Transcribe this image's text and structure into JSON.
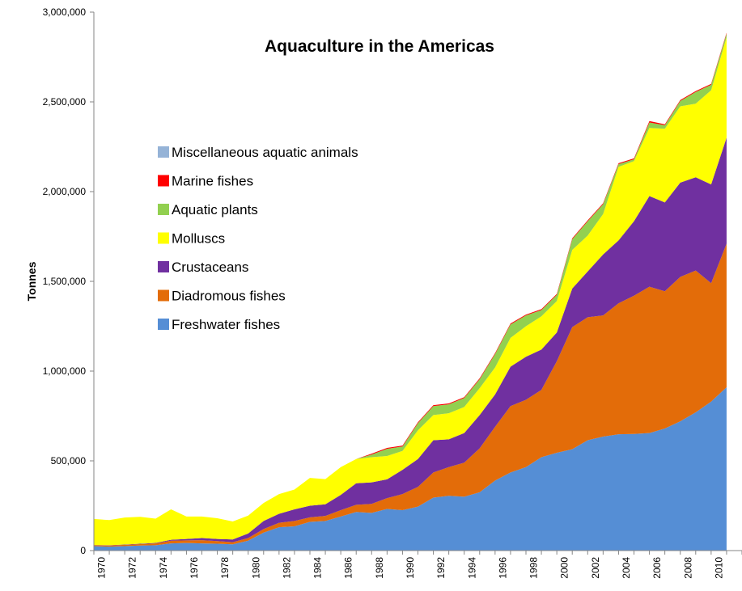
{
  "chart_data": {
    "type": "area",
    "stacked": true,
    "title": "Aquaculture in the Americas",
    "xlabel": "",
    "ylabel": "Tonnes",
    "ylim": [
      0,
      3000000
    ],
    "yticks": [
      0,
      500000,
      1000000,
      1500000,
      2000000,
      2500000,
      3000000
    ],
    "ytick_labels": [
      "0",
      "500,000",
      "1,000,000",
      "1,500,000",
      "2,000,000",
      "2,500,000",
      "3,000,000"
    ],
    "x": [
      1970,
      1971,
      1972,
      1973,
      1974,
      1975,
      1976,
      1977,
      1978,
      1979,
      1980,
      1981,
      1982,
      1983,
      1984,
      1985,
      1986,
      1987,
      1988,
      1989,
      1990,
      1991,
      1992,
      1993,
      1994,
      1995,
      1996,
      1997,
      1998,
      1999,
      2000,
      2001,
      2002,
      2003,
      2004,
      2005,
      2006,
      2007,
      2008,
      2009,
      2010,
      2011
    ],
    "xtick_labels": [
      "1970",
      "1972",
      "1974",
      "1976",
      "1978",
      "1980",
      "1982",
      "1984",
      "1986",
      "1988",
      "1990",
      "1992",
      "1994",
      "1996",
      "1998",
      "2000",
      "2002",
      "2004",
      "2006",
      "2008",
      "2010"
    ],
    "grid": false,
    "legend_position": "left-middle",
    "series": [
      {
        "name": "Freshwater fishes",
        "color": "#558ED5",
        "values": [
          25000,
          22000,
          25000,
          28000,
          30000,
          40000,
          42000,
          40000,
          38000,
          35000,
          55000,
          100000,
          130000,
          135000,
          160000,
          165000,
          190000,
          215000,
          210000,
          232000,
          225000,
          245000,
          295000,
          305000,
          300000,
          325000,
          390000,
          435000,
          465000,
          520000,
          545000,
          565000,
          615000,
          635000,
          648000,
          650000,
          655000,
          680000,
          720000,
          770000,
          830000,
          910000
        ]
      },
      {
        "name": "Diadromous fishes",
        "color": "#E36C09",
        "values": [
          5000,
          6000,
          7000,
          8000,
          10000,
          15000,
          15000,
          18000,
          15000,
          12000,
          15000,
          20000,
          25000,
          30000,
          25000,
          28000,
          35000,
          40000,
          50000,
          60000,
          90000,
          110000,
          140000,
          160000,
          190000,
          245000,
          300000,
          370000,
          375000,
          375000,
          510000,
          680000,
          685000,
          675000,
          730000,
          770000,
          815000,
          765000,
          805000,
          790000,
          660000,
          800000
        ]
      },
      {
        "name": "Crustaceans",
        "color": "#7030A0",
        "values": [
          1000,
          2000,
          2000,
          2000,
          3000,
          5000,
          8000,
          12000,
          12000,
          15000,
          25000,
          45000,
          50000,
          65000,
          65000,
          65000,
          85000,
          120000,
          120000,
          105000,
          135000,
          155000,
          180000,
          155000,
          165000,
          185000,
          180000,
          220000,
          240000,
          225000,
          160000,
          215000,
          255000,
          340000,
          350000,
          415000,
          505000,
          495000,
          525000,
          520000,
          550000,
          590000
        ]
      },
      {
        "name": "Molluscs",
        "color": "#FFFF00",
        "values": [
          145000,
          140000,
          150000,
          150000,
          135000,
          170000,
          125000,
          120000,
          115000,
          100000,
          100000,
          100000,
          110000,
          110000,
          155000,
          140000,
          155000,
          135000,
          140000,
          130000,
          105000,
          160000,
          140000,
          145000,
          145000,
          150000,
          150000,
          160000,
          170000,
          185000,
          175000,
          215000,
          200000,
          225000,
          410000,
          335000,
          380000,
          410000,
          425000,
          410000,
          525000,
          560000
        ]
      },
      {
        "name": "Aquatic plants",
        "color": "#92D050",
        "values": [
          0,
          0,
          0,
          0,
          0,
          0,
          0,
          0,
          0,
          0,
          0,
          0,
          0,
          0,
          0,
          0,
          0,
          0,
          15000,
          40000,
          25000,
          40000,
          50000,
          50000,
          50000,
          50000,
          75000,
          75000,
          60000,
          35000,
          35000,
          60000,
          80000,
          55000,
          15000,
          10000,
          30000,
          20000,
          30000,
          65000,
          30000,
          20000
        ]
      },
      {
        "name": "Marine fishes",
        "color": "#FF0000",
        "values": [
          0,
          0,
          0,
          0,
          0,
          0,
          0,
          0,
          0,
          0,
          0,
          0,
          0,
          0,
          0,
          0,
          0,
          0,
          5000,
          5000,
          5000,
          5000,
          5000,
          5000,
          5000,
          5000,
          5000,
          5000,
          5000,
          5000,
          5000,
          5000,
          5000,
          5000,
          5000,
          5000,
          8000,
          5000,
          5000,
          5000,
          5000,
          5000
        ]
      },
      {
        "name": "Miscellaneous aquatic animals",
        "color": "#95B3D7",
        "values": [
          0,
          0,
          0,
          0,
          0,
          0,
          0,
          0,
          0,
          0,
          0,
          0,
          0,
          0,
          0,
          0,
          0,
          0,
          0,
          0,
          0,
          0,
          0,
          0,
          0,
          0,
          0,
          0,
          0,
          0,
          0,
          0,
          0,
          0,
          0,
          0,
          0,
          0,
          0,
          0,
          0,
          0
        ]
      }
    ],
    "legend_order": [
      "Miscellaneous aquatic animals",
      "Marine fishes",
      "Aquatic plants",
      "Molluscs",
      "Crustaceans",
      "Diadromous fishes",
      "Freshwater fishes"
    ]
  }
}
